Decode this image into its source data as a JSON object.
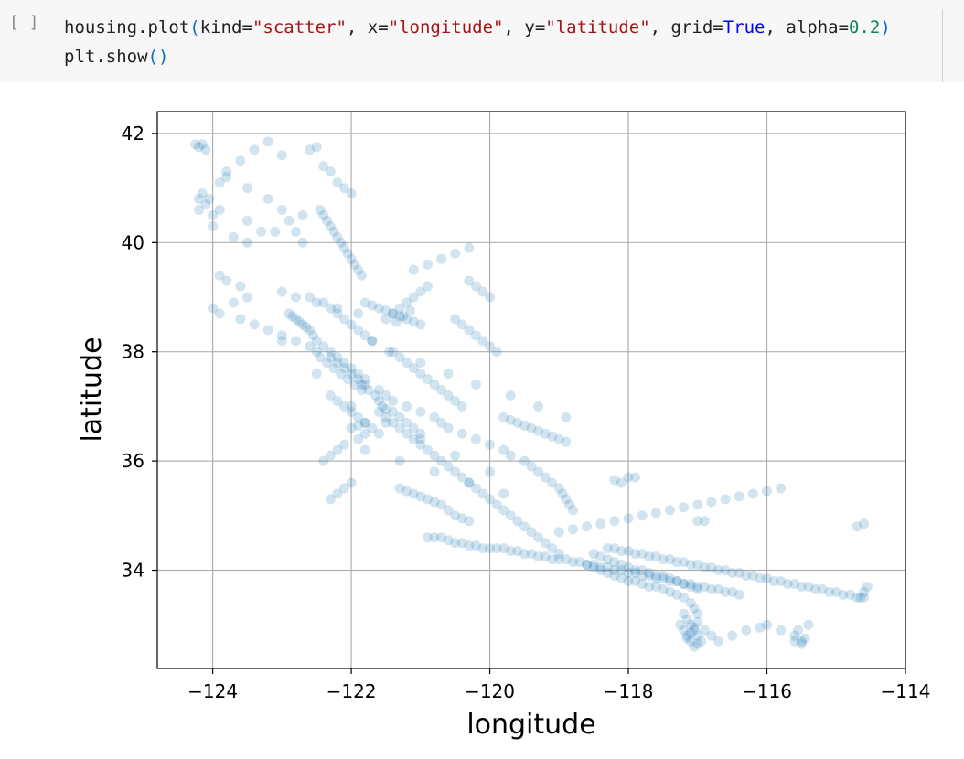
{
  "cell": {
    "run_marker": "[ ]",
    "line1": {
      "t1": "housing.plot",
      "t2": "(",
      "t3": "kind=",
      "t4": "\"scatter\"",
      "t5": ", x=",
      "t6": "\"longitude\"",
      "t7": ", y=",
      "t8": "\"latitude\"",
      "t9": ", grid=",
      "t10": "True",
      "t11": ", alpha=",
      "t12": "0.2",
      "t13": ")"
    },
    "line2": {
      "t1": "plt.show",
      "t2": "()"
    }
  },
  "colors": {
    "marker": "#1f77b4",
    "grid": "#b0b0b0",
    "axes": "#000000"
  },
  "chart_data": {
    "type": "scatter",
    "xlabel": "longitude",
    "ylabel": "latitude",
    "xlim": [
      -124.8,
      -114.0
    ],
    "ylim": [
      32.2,
      42.4
    ],
    "xticks": [
      -124,
      -122,
      -120,
      -118,
      -116,
      -114
    ],
    "xtick_labels": [
      "−124",
      "−122",
      "−120",
      "−118",
      "−116",
      "−114"
    ],
    "yticks": [
      34,
      36,
      38,
      40,
      42
    ],
    "ytick_labels": [
      "34",
      "36",
      "38",
      "40",
      "42"
    ],
    "grid": true,
    "alpha": 0.2,
    "marker_color": "#1f77b4",
    "series": [
      {
        "x": [
          -124.25,
          -124.2,
          -124.15,
          -124.1,
          -124.15,
          -124.05,
          -124.1,
          -124.2,
          -124.0,
          -123.8,
          -123.6,
          -123.4,
          -123.2,
          -123.0,
          -123.3,
          -123.5,
          -123.7,
          -123.9,
          -123.8,
          -123.6,
          -123.5,
          -123.7,
          -124.0,
          -123.9,
          -123.8,
          -123.5,
          -123.2,
          -123.0,
          -122.9,
          -122.8,
          -122.7,
          -122.6,
          -122.5,
          -122.4,
          -122.3,
          -122.2,
          -122.1,
          -122.0,
          -122.45,
          -122.4,
          -122.35,
          -122.3,
          -122.25,
          -122.2,
          -122.15,
          -122.1,
          -122.05,
          -122.0,
          -121.95,
          -121.9,
          -121.85,
          -122.5,
          -122.4,
          -122.3,
          -122.2,
          -122.1,
          -122.0,
          -121.9,
          -121.8,
          -122.45,
          -122.35,
          -122.25,
          -122.15,
          -122.05,
          -121.95,
          -121.85,
          -122.3,
          -122.2,
          -122.1,
          -122.0,
          -121.9,
          -121.8,
          -121.7,
          -121.6,
          -122.6,
          -122.7,
          -122.8,
          -122.9,
          -122.55,
          -122.65,
          -122.75,
          -122.85,
          -122.6,
          -122.4,
          -122.3,
          -122.2,
          -122.1,
          -122.0,
          -121.9,
          -121.8,
          -121.7,
          -122.0,
          -121.9,
          -121.8,
          -121.85,
          -121.75,
          -121.65,
          -121.6,
          -121.55,
          -121.5,
          -121.4,
          -121.3,
          -121.2,
          -121.1,
          -121.0,
          -121.5,
          -121.4,
          -121.3,
          -121.2,
          -121.1,
          -121.0,
          -120.9,
          -121.35,
          -121.25,
          -121.15,
          -121.45,
          -121.3,
          -121.2,
          -121.1,
          -121.0,
          -120.9,
          -120.8,
          -120.7,
          -120.6,
          -120.5,
          -120.4,
          -121.6,
          -121.5,
          -121.4,
          -121.3,
          -121.2,
          -121.1,
          -121.0,
          -120.9,
          -120.8,
          -120.7,
          -120.6,
          -120.5,
          -120.4,
          -120.3,
          -120.2,
          -120.1,
          -120.0,
          -119.9,
          -119.8,
          -119.7,
          -119.6,
          -119.5,
          -119.4,
          -119.3,
          -119.2,
          -119.1,
          -119.0,
          -119.8,
          -119.7,
          -119.6,
          -119.5,
          -119.4,
          -119.3,
          -119.2,
          -119.1,
          -119.0,
          -118.9,
          -120.3,
          -120.2,
          -120.1,
          -120.0,
          -120.5,
          -120.4,
          -120.3,
          -120.2,
          -120.1,
          -120.0,
          -119.9,
          -121.8,
          -121.7,
          -121.6,
          -121.5,
          -121.4,
          -121.3,
          -121.2,
          -121.1,
          -121.0,
          -122.0,
          -122.1,
          -122.2,
          -122.3,
          -121.3,
          -121.2,
          -121.1,
          -121.0,
          -120.9,
          -120.8,
          -120.7,
          -120.6,
          -120.5,
          -120.4,
          -120.3,
          -122.2,
          -122.3,
          -122.4,
          -122.1,
          -121.9,
          -121.8,
          -120.9,
          -120.8,
          -120.7,
          -120.6,
          -120.5,
          -120.4,
          -120.3,
          -120.2,
          -120.1,
          -120.0,
          -119.9,
          -119.8,
          -119.7,
          -119.6,
          -119.5,
          -119.4,
          -119.3,
          -119.2,
          -119.1,
          -119.0,
          -118.9,
          -118.8,
          -118.7,
          -118.6,
          -118.5,
          -118.4,
          -118.3,
          -118.2,
          -118.1,
          -118.0,
          -117.9,
          -117.8,
          -117.7,
          -117.6,
          -117.5,
          -117.4,
          -117.3,
          -117.2,
          -117.1,
          -117.0,
          -116.9,
          -116.8,
          -116.7,
          -116.6,
          -116.5,
          -116.4,
          -118.6,
          -118.5,
          -118.4,
          -118.3,
          -118.2,
          -118.1,
          -118.0,
          -117.9,
          -117.8,
          -117.7,
          -117.6,
          -117.5,
          -117.4,
          -117.3,
          -117.2,
          -118.5,
          -118.4,
          -118.3,
          -118.2,
          -118.1,
          -118.0,
          -117.9,
          -117.8,
          -117.7,
          -117.6,
          -117.5,
          -117.4,
          -117.3,
          -117.2,
          -117.1,
          -117.0,
          -117.2,
          -117.15,
          -117.1,
          -117.05,
          -117.0,
          -116.95,
          -117.25,
          -117.2,
          -117.15,
          -117.1,
          -117.05,
          -117.0,
          -117.15,
          -117.1,
          -117.05,
          -117.0,
          -117.1,
          -117.05,
          -117.0,
          -116.9,
          -116.8,
          -116.7,
          -116.5,
          -116.3,
          -116.1,
          -116.0,
          -115.8,
          -115.6,
          -115.5,
          -115.45,
          -115.55,
          -115.4,
          -115.6,
          -115.5,
          -114.6,
          -114.65,
          -114.55,
          -114.7,
          -114.6,
          -119.2,
          -119.1,
          -119.0,
          -118.95,
          -118.9,
          -118.85,
          -118.8,
          -119.3,
          -119.4,
          -119.5,
          -119.7,
          -119.8,
          -120.0,
          -120.2,
          -120.4,
          -120.6,
          -120.7,
          -120.8,
          -121.0,
          -121.2,
          -121.4,
          -121.5,
          -121.6,
          -121.8,
          -121.9,
          -122.0,
          -122.1,
          -122.2,
          -122.3,
          -122.5,
          -122.6,
          -122.8,
          -123.0,
          -123.2,
          -123.4,
          -123.6,
          -123.9,
          -124.0,
          -118.3,
          -118.2,
          -118.1,
          -118.0,
          -117.9,
          -117.8,
          -117.7,
          -117.6,
          -117.5,
          -117.4,
          -117.3,
          -117.2,
          -117.1,
          -117.0,
          -116.9,
          -116.8,
          -116.7,
          -116.6,
          -116.5,
          -116.4,
          -116.3,
          -116.2,
          -116.1,
          -116.0,
          -115.9,
          -115.8,
          -115.7,
          -115.6,
          -115.5,
          -115.4,
          -115.3,
          -115.2,
          -115.1,
          -115.0,
          -114.9,
          -114.8,
          -114.7,
          -114.6,
          -117.0,
          -116.9,
          -118.1,
          -118.0,
          -117.9,
          -118.2,
          -119.0,
          -118.8,
          -118.6,
          -118.4,
          -118.2,
          -118.0,
          -117.8,
          -117.6,
          -117.4,
          -117.2,
          -117.0,
          -116.8,
          -116.6,
          -116.4,
          -116.2,
          -116.0,
          -115.8,
          -122.0,
          -121.5,
          -121.0,
          -120.5,
          -120.0,
          -122.5,
          -123.0,
          -121.8,
          -121.3,
          -120.8,
          -120.3,
          -119.8,
          -121.1,
          -120.9,
          -120.7,
          -120.5,
          -120.3,
          -121.7,
          -121.4,
          -121.0,
          -120.6,
          -120.2,
          -119.7,
          -119.3,
          -118.9,
          -122.7,
          -123.1,
          -123.5,
          -123.9,
          -124.2,
          -123.0,
          -122.8,
          -122.5,
          -122.2,
          -121.9
        ],
        "y": [
          41.8,
          41.75,
          41.8,
          41.7,
          40.9,
          40.8,
          40.7,
          40.6,
          40.5,
          41.3,
          41.5,
          41.7,
          41.85,
          41.6,
          40.2,
          40.0,
          40.1,
          39.4,
          39.3,
          39.2,
          39.0,
          38.9,
          40.3,
          41.1,
          41.2,
          41.0,
          40.8,
          40.6,
          40.4,
          40.2,
          40.5,
          41.7,
          41.75,
          41.4,
          41.3,
          41.1,
          41.0,
          40.9,
          40.6,
          40.5,
          40.4,
          40.3,
          40.2,
          40.1,
          40.0,
          39.9,
          39.8,
          39.7,
          39.6,
          39.5,
          39.4,
          38.2,
          38.1,
          38.0,
          37.9,
          37.8,
          37.7,
          37.6,
          37.5,
          37.9,
          37.8,
          37.7,
          37.6,
          37.5,
          37.4,
          37.3,
          37.2,
          37.1,
          37.0,
          36.9,
          36.8,
          36.7,
          36.6,
          36.5,
          38.4,
          38.5,
          38.6,
          38.7,
          38.3,
          38.45,
          38.55,
          38.65,
          39.0,
          38.9,
          38.8,
          38.7,
          38.6,
          38.5,
          38.4,
          38.3,
          38.2,
          36.6,
          36.65,
          36.7,
          37.4,
          37.3,
          37.2,
          37.1,
          37.0,
          36.95,
          36.9,
          36.8,
          36.7,
          36.6,
          36.5,
          38.6,
          38.7,
          38.8,
          38.9,
          39.0,
          39.1,
          39.2,
          38.55,
          38.65,
          38.75,
          38.0,
          37.9,
          37.8,
          37.7,
          37.6,
          37.5,
          37.4,
          37.3,
          37.2,
          37.1,
          37.0,
          36.9,
          36.8,
          36.7,
          36.6,
          36.5,
          36.4,
          36.3,
          36.2,
          36.1,
          36.0,
          35.9,
          35.8,
          35.7,
          35.6,
          35.5,
          35.4,
          35.3,
          35.2,
          35.1,
          35.0,
          34.9,
          34.8,
          34.7,
          34.6,
          34.5,
          34.4,
          34.3,
          36.8,
          36.75,
          36.7,
          36.65,
          36.6,
          36.55,
          36.5,
          36.45,
          36.4,
          36.35,
          39.3,
          39.2,
          39.1,
          39.0,
          38.6,
          38.5,
          38.4,
          38.3,
          38.2,
          38.1,
          38.0,
          38.9,
          38.85,
          38.8,
          38.75,
          38.7,
          38.65,
          38.6,
          38.55,
          38.5,
          35.6,
          35.5,
          35.4,
          35.3,
          35.5,
          35.45,
          35.4,
          35.35,
          35.3,
          35.25,
          35.2,
          35.1,
          35.0,
          34.95,
          34.9,
          36.2,
          36.1,
          36.0,
          36.3,
          36.4,
          36.5,
          34.6,
          34.6,
          34.6,
          34.55,
          34.5,
          34.5,
          34.45,
          34.45,
          34.4,
          34.4,
          34.4,
          34.4,
          34.35,
          34.35,
          34.3,
          34.3,
          34.25,
          34.25,
          34.2,
          34.2,
          34.2,
          34.15,
          34.15,
          34.1,
          34.1,
          34.05,
          34.05,
          34.0,
          34.0,
          33.95,
          33.95,
          33.9,
          33.9,
          33.85,
          33.85,
          33.8,
          33.8,
          33.75,
          33.75,
          33.7,
          33.7,
          33.65,
          33.65,
          33.6,
          33.6,
          33.55,
          34.1,
          34.05,
          34.0,
          33.95,
          33.9,
          33.85,
          33.8,
          33.8,
          33.75,
          33.7,
          33.7,
          33.65,
          33.6,
          33.55,
          33.5,
          34.3,
          34.25,
          34.2,
          34.15,
          34.1,
          34.05,
          34.0,
          34.0,
          33.95,
          33.9,
          33.9,
          33.85,
          33.8,
          33.75,
          33.7,
          33.65,
          33.2,
          33.1,
          33.0,
          32.9,
          32.8,
          32.7,
          33.0,
          32.9,
          32.8,
          32.7,
          32.6,
          32.65,
          32.75,
          32.85,
          32.95,
          33.05,
          33.4,
          33.3,
          33.2,
          32.9,
          32.8,
          32.7,
          32.8,
          32.9,
          32.95,
          33.0,
          32.9,
          32.8,
          32.7,
          32.75,
          32.9,
          33.0,
          32.7,
          32.65,
          33.6,
          33.5,
          33.7,
          34.8,
          34.85,
          35.7,
          35.6,
          35.5,
          35.4,
          35.3,
          35.2,
          35.1,
          35.8,
          35.9,
          36.0,
          36.1,
          36.2,
          36.3,
          36.4,
          36.5,
          36.6,
          36.7,
          36.8,
          36.9,
          37.0,
          37.1,
          37.2,
          37.3,
          37.4,
          37.5,
          37.6,
          37.7,
          37.8,
          37.9,
          38.0,
          38.1,
          38.2,
          38.3,
          38.4,
          38.5,
          38.6,
          38.7,
          38.8,
          34.4,
          34.4,
          34.35,
          34.35,
          34.3,
          34.3,
          34.25,
          34.25,
          34.2,
          34.2,
          34.15,
          34.15,
          34.1,
          34.1,
          34.05,
          34.05,
          34.0,
          34.0,
          33.95,
          33.95,
          33.9,
          33.9,
          33.85,
          33.85,
          33.8,
          33.8,
          33.75,
          33.75,
          33.7,
          33.7,
          33.65,
          33.65,
          33.6,
          33.6,
          33.55,
          33.55,
          33.5,
          33.5,
          34.9,
          34.9,
          35.6,
          35.7,
          35.7,
          35.65,
          34.7,
          34.75,
          34.8,
          34.85,
          34.9,
          34.95,
          35.0,
          35.05,
          35.1,
          35.15,
          35.2,
          35.25,
          35.3,
          35.35,
          35.4,
          35.45,
          35.5,
          37.0,
          36.7,
          36.4,
          36.1,
          35.8,
          37.6,
          38.2,
          36.2,
          36.0,
          35.8,
          35.6,
          35.4,
          39.5,
          39.6,
          39.7,
          39.8,
          39.9,
          38.2,
          38.0,
          37.8,
          37.6,
          37.4,
          37.2,
          37.0,
          36.8,
          40.0,
          40.2,
          40.4,
          40.6,
          40.8,
          39.1,
          39.0,
          38.9,
          38.8,
          38.7
        ]
      }
    ]
  }
}
